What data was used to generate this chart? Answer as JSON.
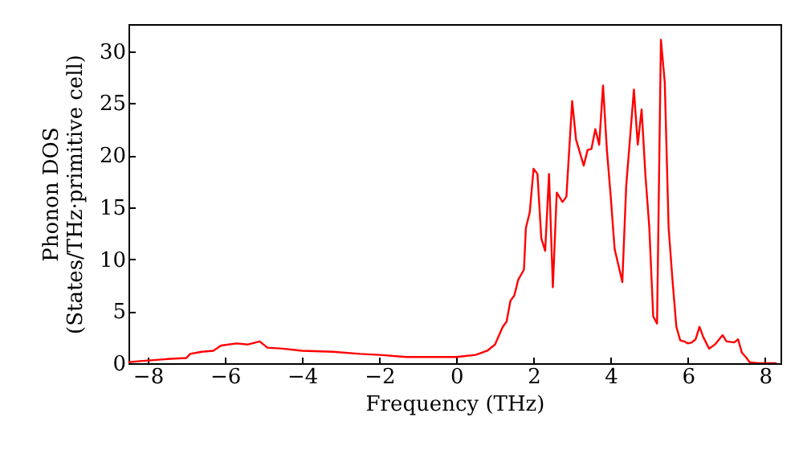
{
  "chart_data": {
    "type": "line",
    "xlabel": "Frequency (THz)",
    "ylabel": "Phonon DOS\n(States/THz·primitive cell)",
    "xlim": [
      -8.5,
      8.4
    ],
    "ylim": [
      0,
      32.6
    ],
    "xticks": [
      -8,
      -6,
      -4,
      -2,
      0,
      2,
      4,
      6,
      8
    ],
    "yticks": [
      0,
      5,
      10,
      15,
      20,
      25,
      30
    ],
    "grid": false,
    "marker": "none",
    "line_style": "solid",
    "x": [
      -8.5,
      -8.2,
      -7.5,
      -7,
      -6.9,
      -6.6,
      -6.3,
      -6.1,
      -5.7,
      -5.4,
      -5.1,
      -4.9,
      -4.5,
      -4,
      -3.2,
      -2.5,
      -2,
      -1.3,
      -0.5,
      0,
      0.5,
      0.8,
      1.0,
      1.2,
      1.3,
      1.4,
      1.5,
      1.6,
      1.75,
      1.8,
      1.9,
      2.0,
      2.1,
      2.2,
      2.3,
      2.4,
      2.5,
      2.6,
      2.75,
      2.85,
      3.0,
      3.1,
      3.3,
      3.4,
      3.5,
      3.6,
      3.7,
      3.8,
      3.9,
      4.0,
      4.1,
      4.3,
      4.4,
      4.6,
      4.7,
      4.8,
      4.9,
      5.0,
      5.1,
      5.2,
      5.3,
      5.4,
      5.5,
      5.6,
      5.7,
      5.8,
      5.9,
      6.0,
      6.1,
      6.2,
      6.3,
      6.4,
      6.55,
      6.7,
      6.9,
      7.0,
      7.2,
      7.3,
      7.4,
      7.5,
      7.6,
      7.8,
      8.0,
      8.3
    ],
    "series": [
      {
        "color": "#ff0000",
        "values": [
          0.1,
          0.2,
          0.4,
          0.5,
          0.9,
          1.1,
          1.2,
          1.7,
          1.9,
          1.8,
          2.1,
          1.5,
          1.4,
          1.2,
          1.1,
          0.9,
          0.8,
          0.6,
          0.6,
          0.6,
          0.8,
          1.2,
          1.8,
          3.5,
          4,
          6,
          6.5,
          8,
          9,
          13,
          14.5,
          18.7,
          18.2,
          12,
          10.8,
          18.2,
          7.3,
          16.4,
          15.5,
          16,
          25.2,
          21.5,
          19,
          20.5,
          20.6,
          22.5,
          21,
          26.7,
          20.5,
          16,
          11,
          7.8,
          17,
          26.3,
          21,
          24.4,
          18,
          13,
          4.5,
          3.8,
          31.1,
          27,
          13,
          8,
          3.5,
          2.2,
          2.1,
          1.9,
          2.0,
          2.3,
          3.5,
          2.5,
          1.4,
          1.8,
          2.7,
          2.1,
          2.0,
          2.3,
          1.0,
          0.6,
          0.1,
          0,
          0,
          0
        ]
      }
    ]
  }
}
